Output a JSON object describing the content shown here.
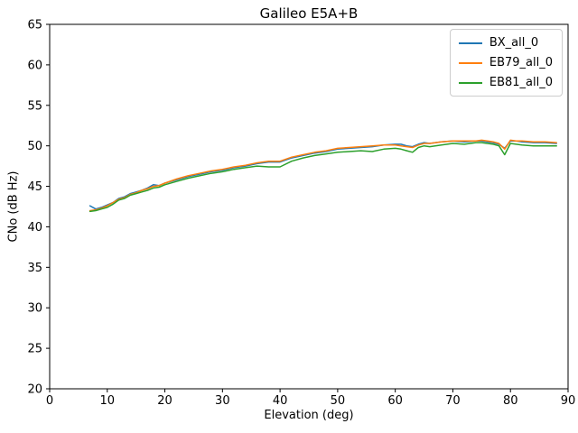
{
  "chart_data": {
    "type": "line",
    "title": "Galileo E5A+B",
    "xlabel": "Elevation (deg)",
    "ylabel": "CNo (dB Hz)",
    "xlim": [
      0,
      90
    ],
    "ylim": [
      20,
      65
    ],
    "xticks": [
      0,
      10,
      20,
      30,
      40,
      50,
      60,
      70,
      80,
      90
    ],
    "yticks": [
      20,
      25,
      30,
      35,
      40,
      45,
      50,
      55,
      60,
      65
    ],
    "grid": false,
    "legend_position": "upper right",
    "x": [
      7,
      8,
      9,
      10,
      11,
      12,
      13,
      14,
      15,
      16,
      17,
      18,
      19,
      20,
      22,
      24,
      26,
      28,
      30,
      32,
      34,
      36,
      38,
      40,
      42,
      44,
      46,
      48,
      50,
      52,
      54,
      56,
      58,
      60,
      61,
      62,
      63,
      64,
      65,
      66,
      68,
      70,
      72,
      74,
      75,
      76,
      77,
      78,
      79,
      80,
      81,
      82,
      84,
      86,
      88
    ],
    "series": [
      {
        "name": "BX_all_0",
        "color": "#1f77b4",
        "values": [
          42.6,
          42.2,
          42.4,
          42.7,
          43.0,
          43.5,
          43.7,
          44.1,
          44.3,
          44.5,
          44.8,
          45.2,
          45.1,
          45.4,
          45.8,
          46.2,
          46.5,
          46.8,
          47.0,
          47.3,
          47.5,
          47.8,
          48.0,
          48.0,
          48.5,
          48.8,
          49.1,
          49.3,
          49.6,
          49.7,
          49.8,
          49.9,
          50.1,
          50.2,
          50.2,
          50.0,
          49.9,
          50.2,
          50.4,
          50.3,
          50.5,
          50.6,
          50.5,
          50.6,
          50.6,
          50.5,
          50.4,
          50.2,
          49.7,
          50.6,
          50.6,
          50.5,
          50.4,
          50.4,
          50.3
        ]
      },
      {
        "name": "EB79_all_0",
        "color": "#ff7f0e",
        "values": [
          42.0,
          42.1,
          42.3,
          42.6,
          43.0,
          43.4,
          43.6,
          44.0,
          44.2,
          44.5,
          44.7,
          45.0,
          45.1,
          45.4,
          45.9,
          46.3,
          46.6,
          46.9,
          47.1,
          47.4,
          47.6,
          47.9,
          48.1,
          48.1,
          48.6,
          48.9,
          49.2,
          49.4,
          49.7,
          49.8,
          49.9,
          50.0,
          50.1,
          50.1,
          50.0,
          49.9,
          49.8,
          50.1,
          50.3,
          50.3,
          50.5,
          50.6,
          50.6,
          50.6,
          50.7,
          50.6,
          50.5,
          50.3,
          49.6,
          50.7,
          50.6,
          50.6,
          50.5,
          50.5,
          50.4
        ]
      },
      {
        "name": "EB81_all_0",
        "color": "#2ca02c",
        "values": [
          41.9,
          42.0,
          42.2,
          42.4,
          42.8,
          43.3,
          43.5,
          43.9,
          44.1,
          44.3,
          44.5,
          44.8,
          44.9,
          45.2,
          45.6,
          46.0,
          46.3,
          46.6,
          46.8,
          47.1,
          47.3,
          47.5,
          47.4,
          47.4,
          48.1,
          48.5,
          48.8,
          49.0,
          49.2,
          49.3,
          49.4,
          49.3,
          49.6,
          49.7,
          49.6,
          49.4,
          49.2,
          49.8,
          50.0,
          49.9,
          50.1,
          50.3,
          50.2,
          50.4,
          50.4,
          50.3,
          50.2,
          50.0,
          48.9,
          50.3,
          50.2,
          50.1,
          50.0,
          50.0,
          50.0
        ]
      }
    ]
  }
}
